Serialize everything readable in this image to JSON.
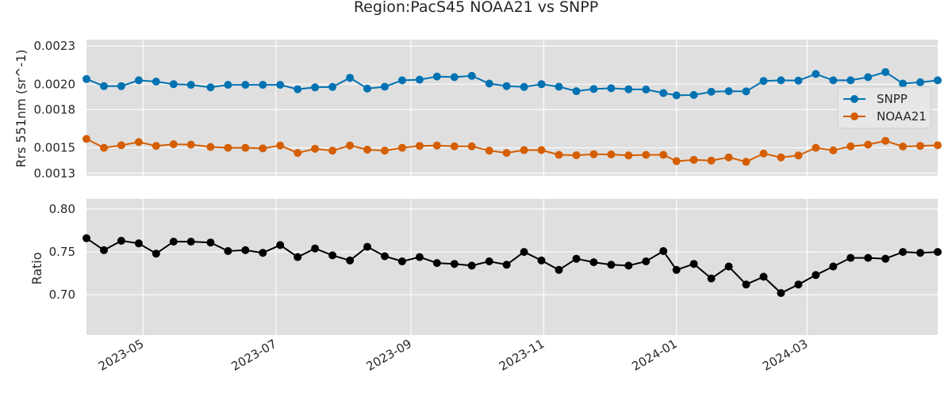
{
  "title": "Region:PacS45 NOAA21 vs SNPP",
  "colors": {
    "panel_bg": "#dfdfdf",
    "grid": "#ffffff",
    "snpp": "#0072b2",
    "noaa21": "#d55e00",
    "ratio": "#000000"
  },
  "chart_data": [
    {
      "type": "line",
      "ylabel": "Rrs 551nm (sr^-1)",
      "ylim": [
        0.00128,
        0.00235
      ],
      "yticks": [
        0.0013,
        0.0015,
        0.0018,
        0.002,
        0.0023
      ],
      "ytick_labels": [
        "0.0013",
        "0.0015",
        "0.0018",
        "0.0020",
        "0.0023"
      ],
      "xlim": [
        "2023-04-05",
        "2024-04-30"
      ],
      "legend_position": "right",
      "grid": true,
      "x": [
        "2023-04-05",
        "2023-04-13",
        "2023-04-21",
        "2023-04-29",
        "2023-05-07",
        "2023-05-15",
        "2023-05-23",
        "2023-06-01",
        "2023-06-09",
        "2023-06-17",
        "2023-06-25",
        "2023-07-03",
        "2023-07-11",
        "2023-07-19",
        "2023-07-27",
        "2023-08-04",
        "2023-08-12",
        "2023-08-20",
        "2023-08-28",
        "2023-09-05",
        "2023-09-13",
        "2023-09-21",
        "2023-09-29",
        "2023-10-07",
        "2023-10-15",
        "2023-10-23",
        "2023-10-31",
        "2023-11-08",
        "2023-11-16",
        "2023-11-24",
        "2023-12-02",
        "2023-12-10",
        "2023-12-18",
        "2023-12-26",
        "2024-01-01",
        "2024-01-09",
        "2024-01-17",
        "2024-01-25",
        "2024-02-02",
        "2024-02-10",
        "2024-02-18",
        "2024-02-26",
        "2024-03-05",
        "2024-03-13",
        "2024-03-21",
        "2024-03-29",
        "2024-04-06",
        "2024-04-14",
        "2024-04-22",
        "2024-04-30"
      ],
      "series": [
        {
          "name": "SNPP",
          "values": [
            0.00204,
            0.001985,
            0.001985,
            0.00203,
            0.00202,
            0.002,
            0.001995,
            0.001975,
            0.001995,
            0.001995,
            0.001995,
            0.001995,
            0.00196,
            0.001975,
            0.001978,
            0.00205,
            0.001965,
            0.00198,
            0.00203,
            0.002035,
            0.00206,
            0.002055,
            0.002065,
            0.002005,
            0.001985,
            0.001978,
            0.002,
            0.00198,
            0.001945,
            0.001962,
            0.001968,
            0.00196,
            0.001958,
            0.00193,
            0.001912,
            0.001915,
            0.00194,
            0.001945,
            0.001943,
            0.002025,
            0.00203,
            0.002028,
            0.00208,
            0.00203,
            0.00203,
            0.002055,
            0.002095,
            0.002005,
            0.002015,
            0.00203
          ]
        },
        {
          "name": "NOAA21",
          "values": [
            0.00157,
            0.0015,
            0.00152,
            0.001545,
            0.001515,
            0.001528,
            0.001525,
            0.001507,
            0.0015,
            0.0015,
            0.001495,
            0.001518,
            0.00146,
            0.001492,
            0.001478,
            0.001518,
            0.001485,
            0.001478,
            0.0015,
            0.001515,
            0.001518,
            0.001512,
            0.001512,
            0.001478,
            0.00146,
            0.001482,
            0.001482,
            0.001445,
            0.001442,
            0.00145,
            0.001448,
            0.00144,
            0.001445,
            0.001445,
            0.001395,
            0.001405,
            0.0014,
            0.001425,
            0.00139,
            0.001455,
            0.001425,
            0.00144,
            0.0015,
            0.00148,
            0.001512,
            0.001525,
            0.001555,
            0.00151,
            0.001515,
            0.00152
          ]
        }
      ]
    },
    {
      "type": "line",
      "ylabel": "Ratio",
      "ylim": [
        0.653,
        0.812
      ],
      "yticks": [
        0.7,
        0.75,
        0.8
      ],
      "ytick_labels": [
        "0.70",
        "0.75",
        "0.80"
      ],
      "xlim": [
        "2023-04-05",
        "2024-04-30"
      ],
      "xticks": [
        "2023-05-01",
        "2023-07-01",
        "2023-09-01",
        "2023-11-01",
        "2024-01-01",
        "2024-03-01"
      ],
      "xtick_labels": [
        "2023-05",
        "2023-07",
        "2023-09",
        "2023-11",
        "2024-01",
        "2024-03"
      ],
      "grid": true,
      "x": [
        "2023-04-05",
        "2023-04-13",
        "2023-04-21",
        "2023-04-29",
        "2023-05-07",
        "2023-05-15",
        "2023-05-23",
        "2023-06-01",
        "2023-06-09",
        "2023-06-17",
        "2023-06-25",
        "2023-07-03",
        "2023-07-11",
        "2023-07-19",
        "2023-07-27",
        "2023-08-04",
        "2023-08-12",
        "2023-08-20",
        "2023-08-28",
        "2023-09-05",
        "2023-09-13",
        "2023-09-21",
        "2023-09-29",
        "2023-10-07",
        "2023-10-15",
        "2023-10-23",
        "2023-10-31",
        "2023-11-08",
        "2023-11-16",
        "2023-11-24",
        "2023-12-02",
        "2023-12-10",
        "2023-12-18",
        "2023-12-26",
        "2024-01-01",
        "2024-01-09",
        "2024-01-17",
        "2024-01-25",
        "2024-02-02",
        "2024-02-10",
        "2024-02-18",
        "2024-02-26",
        "2024-03-05",
        "2024-03-13",
        "2024-03-21",
        "2024-03-29",
        "2024-04-06",
        "2024-04-14",
        "2024-04-22",
        "2024-04-30"
      ],
      "series": [
        {
          "values": [
            0.766,
            0.752,
            0.763,
            0.76,
            0.748,
            0.762,
            0.762,
            0.761,
            0.751,
            0.752,
            0.749,
            0.758,
            0.744,
            0.754,
            0.746,
            0.74,
            0.756,
            0.745,
            0.739,
            0.744,
            0.737,
            0.736,
            0.734,
            0.739,
            0.735,
            0.75,
            0.74,
            0.729,
            0.742,
            0.738,
            0.735,
            0.734,
            0.739,
            0.751,
            0.729,
            0.736,
            0.719,
            0.733,
            0.712,
            0.721,
            0.702,
            0.712,
            0.723,
            0.733,
            0.743,
            0.743,
            0.742,
            0.75,
            0.749,
            0.75
          ]
        }
      ]
    }
  ]
}
